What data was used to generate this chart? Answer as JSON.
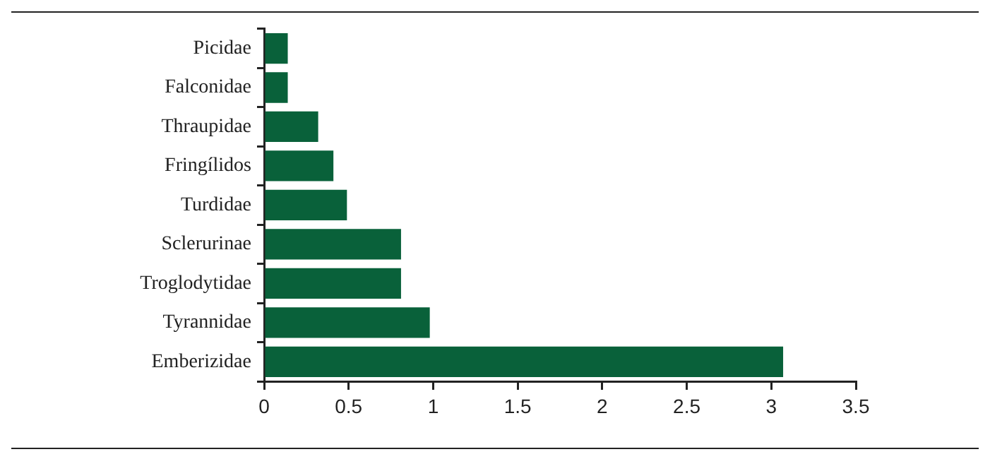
{
  "chart_data": {
    "type": "bar",
    "orientation": "horizontal",
    "categories": [
      "Picidae",
      "Falconidae",
      "Thraupidae",
      "Fringílidos",
      "Turdidae",
      "Sclerurinae",
      "Troglodytidae",
      "Tyrannidae",
      "Emberizidae"
    ],
    "values": [
      0.14,
      0.14,
      0.32,
      0.41,
      0.49,
      0.81,
      0.81,
      0.98,
      3.07
    ],
    "color": "#09613a",
    "xlim": [
      0,
      3.5
    ],
    "xticks": [
      0,
      0.5,
      1,
      1.5,
      2,
      2.5,
      3,
      3.5
    ],
    "grid": false,
    "legend": false
  }
}
